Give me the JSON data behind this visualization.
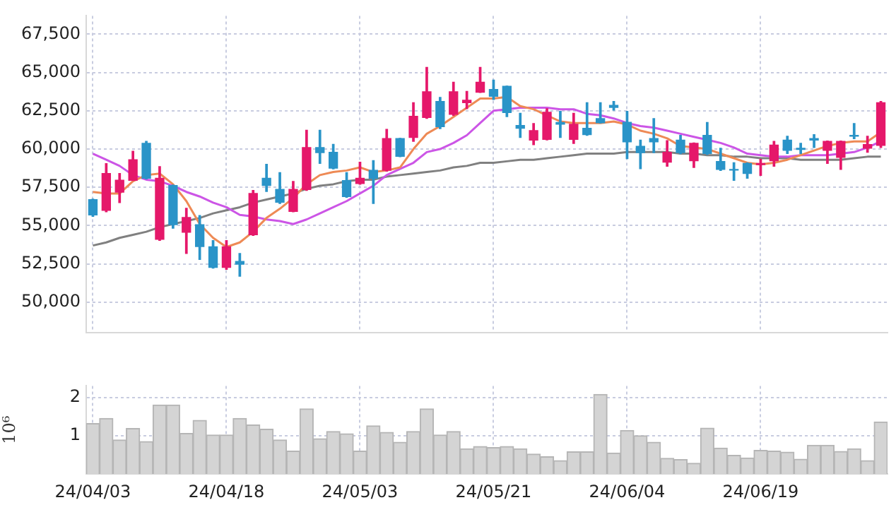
{
  "chart_data": [
    {
      "type": "candlestick",
      "categories": [
        null,
        null,
        null,
        null,
        null,
        null,
        null,
        null,
        null,
        null,
        null,
        null,
        null,
        null,
        null,
        null,
        null,
        null,
        null,
        null,
        null,
        null,
        null,
        null,
        null,
        null,
        null,
        null,
        null,
        null,
        null,
        null,
        null,
        null,
        null,
        null,
        null,
        null,
        null,
        null,
        null,
        null,
        null,
        null,
        null,
        null,
        null,
        null,
        null,
        null,
        null,
        null,
        null,
        null,
        null,
        null,
        null,
        null,
        null,
        null
      ],
      "ohlc": [
        [
          56700,
          56730,
          55600,
          55700
        ],
        [
          56000,
          59050,
          55900,
          58400
        ],
        [
          57180,
          58400,
          56500,
          57960
        ],
        [
          57960,
          59850,
          57950,
          59300
        ],
        [
          60370,
          60500,
          58050,
          58090
        ],
        [
          54100,
          58850,
          54040,
          58090
        ],
        [
          57620,
          57650,
          54830,
          55060
        ],
        [
          54570,
          56130,
          53180,
          55530
        ],
        [
          55060,
          55660,
          52790,
          53630
        ],
        [
          53620,
          54020,
          52230,
          52270
        ],
        [
          52270,
          54020,
          52140,
          53620
        ],
        [
          52660,
          53180,
          51690,
          52480
        ],
        [
          54410,
          57300,
          54360,
          57100
        ],
        [
          58090,
          59000,
          57230,
          57620
        ],
        [
          57360,
          58460,
          56450,
          56530
        ],
        [
          55930,
          57880,
          55900,
          57360
        ],
        [
          57360,
          61230,
          57300,
          60100
        ],
        [
          60100,
          61230,
          59060,
          59770
        ],
        [
          59790,
          60310,
          58700,
          58750
        ],
        [
          57940,
          58460,
          56850,
          56890
        ],
        [
          57750,
          59140,
          57700,
          58090
        ],
        [
          58610,
          59240,
          56450,
          58090
        ],
        [
          58610,
          61280,
          58550,
          60680
        ],
        [
          60680,
          60700,
          59500,
          59530
        ],
        [
          60760,
          63030,
          60500,
          62140
        ],
        [
          62060,
          65330,
          62000,
          63740
        ],
        [
          63110,
          63370,
          61330,
          61460
        ],
        [
          62270,
          64360,
          62200,
          63740
        ],
        [
          63030,
          63760,
          62640,
          63190
        ],
        [
          63710,
          65330,
          63700,
          64360
        ],
        [
          63890,
          64500,
          63240,
          63450
        ],
        [
          64100,
          64110,
          62120,
          62380
        ],
        [
          61540,
          62330,
          60760,
          61360
        ],
        [
          60580,
          61670,
          60290,
          61200
        ],
        [
          60630,
          62640,
          60600,
          62400
        ],
        [
          61730,
          62460,
          60760,
          61620
        ],
        [
          60630,
          62330,
          60370,
          61620
        ],
        [
          61360,
          63030,
          60900,
          60940
        ],
        [
          61990,
          63030,
          61700,
          61720
        ],
        [
          62850,
          63110,
          62540,
          62720
        ],
        [
          61750,
          62460,
          59370,
          60470
        ],
        [
          60180,
          60580,
          58720,
          59770
        ],
        [
          60680,
          61990,
          59770,
          60470
        ],
        [
          59140,
          60550,
          58880,
          59790
        ],
        [
          60580,
          60890,
          59700,
          59770
        ],
        [
          59240,
          60400,
          58800,
          60370
        ],
        [
          60890,
          61730,
          59650,
          59710
        ],
        [
          59190,
          60050,
          58600,
          58670
        ],
        [
          58670,
          59110,
          57960,
          58620
        ],
        [
          59060,
          59100,
          58090,
          58410
        ],
        [
          58980,
          59320,
          58280,
          59060
        ],
        [
          59240,
          60500,
          58880,
          60260
        ],
        [
          60580,
          60840,
          59710,
          59920
        ],
        [
          60050,
          60370,
          59710,
          59970
        ],
        [
          60680,
          60940,
          60100,
          60580
        ],
        [
          59920,
          60520,
          59060,
          60500
        ],
        [
          59450,
          60520,
          58670,
          60500
        ],
        [
          60890,
          61670,
          60680,
          60840
        ],
        [
          60050,
          60840,
          59790,
          60290
        ],
        [
          60240,
          63110,
          60100,
          63030
        ]
      ],
      "colors": [
        "#2a94c8",
        "#e5186a",
        "#e5186a",
        "#e5186a",
        "#2a94c8",
        "#e5186a",
        "#2a94c8",
        "#e5186a",
        "#2a94c8",
        "#2a94c8",
        "#e5186a",
        "#2a94c8",
        "#e5186a",
        "#2a94c8",
        "#2a94c8",
        "#e5186a",
        "#e5186a",
        "#2a94c8",
        "#2a94c8",
        "#2a94c8",
        "#e5186a",
        "#2a94c8",
        "#e5186a",
        "#2a94c8",
        "#e5186a",
        "#e5186a",
        "#2a94c8",
        "#e5186a",
        "#e5186a",
        "#e5186a",
        "#2a94c8",
        "#2a94c8",
        "#2a94c8",
        "#e5186a",
        "#e5186a",
        "#2a94c8",
        "#e5186a",
        "#2a94c8",
        "#2a94c8",
        "#2a94c8",
        "#2a94c8",
        "#2a94c8",
        "#2a94c8",
        "#e5186a",
        "#2a94c8",
        "#e5186a",
        "#2a94c8",
        "#2a94c8",
        "#2a94c8",
        "#2a94c8",
        "#e5186a",
        "#e5186a",
        "#2a94c8",
        "#2a94c8",
        "#2a94c8",
        "#e5186a",
        "#e5186a",
        "#2a94c8",
        "#e5186a",
        "#e5186a"
      ],
      "series": [
        {
          "type": "line",
          "color": "#ee8a55",
          "values": [
            57200,
            57100,
            57100,
            57900,
            58300,
            58400,
            57700,
            56600,
            55100,
            54200,
            53600,
            53900,
            54600,
            55500,
            56100,
            56800,
            57700,
            58300,
            58500,
            58600,
            58800,
            58500,
            58600,
            58800,
            60000,
            61000,
            61500,
            62100,
            62700,
            63300,
            63300,
            63400,
            62800,
            62600,
            62200,
            61800,
            61700,
            61700,
            61700,
            61800,
            61600,
            61200,
            61000,
            60700,
            60200,
            60100,
            60000,
            59700,
            59400,
            59100,
            59000,
            59100,
            59300,
            59600,
            59900,
            60200,
            60400,
            60500,
            60500,
            61100
          ]
        },
        {
          "type": "line",
          "color": "#cc55e6",
          "values": [
            59700,
            59300,
            58900,
            58300,
            58000,
            57900,
            57600,
            57200,
            56900,
            56500,
            56200,
            55700,
            55600,
            55400,
            55300,
            55100,
            55400,
            55800,
            56200,
            56600,
            57100,
            57600,
            58300,
            58700,
            59100,
            59800,
            60000,
            60400,
            60900,
            61700,
            62500,
            62600,
            62700,
            62700,
            62700,
            62600,
            62600,
            62300,
            62200,
            62000,
            61700,
            61500,
            61400,
            61200,
            61000,
            60800,
            60600,
            60400,
            60100,
            59700,
            59600,
            59500,
            59500,
            59600,
            59600,
            59600,
            59700,
            59800,
            60100,
            60500
          ]
        },
        {
          "type": "line",
          "color": "#808080",
          "values": [
            53700,
            53900,
            54200,
            54400,
            54600,
            54900,
            55100,
            55300,
            55500,
            55800,
            56000,
            56200,
            56500,
            56700,
            56900,
            57100,
            57400,
            57600,
            57700,
            57900,
            58000,
            58000,
            58200,
            58300,
            58400,
            58500,
            58600,
            58800,
            58900,
            59100,
            59100,
            59200,
            59300,
            59300,
            59400,
            59500,
            59600,
            59700,
            59700,
            59700,
            59800,
            59800,
            59800,
            59800,
            59700,
            59700,
            59600,
            59600,
            59500,
            59500,
            59400,
            59400,
            59400,
            59300,
            59300,
            59300,
            59300,
            59400,
            59500,
            59500
          ]
        }
      ],
      "ylim": [
        48000,
        68700
      ],
      "yticks": [
        {
          "value": 50000,
          "label": "50,000"
        },
        {
          "value": 52500,
          "label": "52,500"
        },
        {
          "value": 55000,
          "label": "55,000"
        },
        {
          "value": 57500,
          "label": "57,500"
        },
        {
          "value": 60000,
          "label": "60,000"
        },
        {
          "value": 62500,
          "label": "62,500"
        },
        {
          "value": 65000,
          "label": "65,000"
        },
        {
          "value": 67500,
          "label": "67,500"
        }
      ],
      "grid": true
    },
    {
      "type": "bar",
      "categories": [
        "24/04/03",
        null,
        null,
        null,
        null,
        null,
        null,
        null,
        null,
        null,
        "24/04/18",
        null,
        null,
        null,
        null,
        null,
        null,
        null,
        null,
        null,
        "24/05/03",
        null,
        null,
        null,
        null,
        null,
        null,
        null,
        null,
        null,
        "24/05/21",
        null,
        null,
        null,
        null,
        null,
        null,
        null,
        null,
        null,
        "24/06/04",
        null,
        null,
        null,
        null,
        null,
        null,
        null,
        null,
        null,
        "24/06/19",
        null,
        null,
        null,
        null,
        null,
        null,
        null,
        null,
        null
      ],
      "values": [
        1.32,
        1.45,
        0.89,
        1.19,
        0.85,
        1.8,
        1.8,
        1.06,
        1.4,
        1.02,
        1.02,
        1.45,
        1.28,
        1.17,
        0.89,
        0.6,
        1.7,
        0.92,
        1.11,
        1.05,
        0.6,
        1.26,
        1.09,
        0.83,
        1.11,
        1.7,
        1.02,
        1.11,
        0.66,
        0.72,
        0.69,
        0.72,
        0.66,
        0.52,
        0.45,
        0.35,
        0.58,
        0.58,
        2.08,
        0.55,
        1.14,
        1.0,
        0.83,
        0.41,
        0.38,
        0.28,
        1.2,
        0.68,
        0.49,
        0.42,
        0.62,
        0.6,
        0.57,
        0.39,
        0.75,
        0.75,
        0.59,
        0.66,
        0.35,
        1.36
      ],
      "color": "#d4d4d4",
      "ylim": [
        0,
        2.3
      ],
      "yticks": [
        1,
        2
      ],
      "ylabel": "10⁶",
      "grid": true
    }
  ]
}
